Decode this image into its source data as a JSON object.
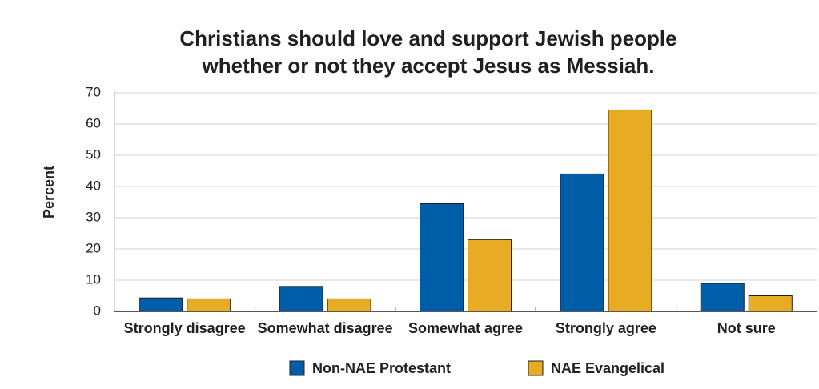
{
  "chart_data": {
    "type": "bar",
    "title": [
      "Christians should love and support Jewish people",
      "whether or not they accept Jesus as Messiah."
    ],
    "y_label": "Percent",
    "categories": [
      "Strongly disagree",
      "Somewhat disagree",
      "Somewhat agree",
      "Strongly agree",
      "Not sure"
    ],
    "series": [
      {
        "name": "Non-NAE Protestant",
        "color": "#005ea8",
        "values": [
          4.3,
          8,
          34.5,
          44,
          9
        ]
      },
      {
        "name": "NAE Evangelical",
        "color": "#e8ab24",
        "values": [
          4,
          4,
          23,
          64.5,
          5
        ]
      }
    ],
    "ylim": [
      0,
      70
    ],
    "yticks": [
      0,
      10,
      20,
      30,
      40,
      50,
      60,
      70
    ],
    "grid": true
  }
}
